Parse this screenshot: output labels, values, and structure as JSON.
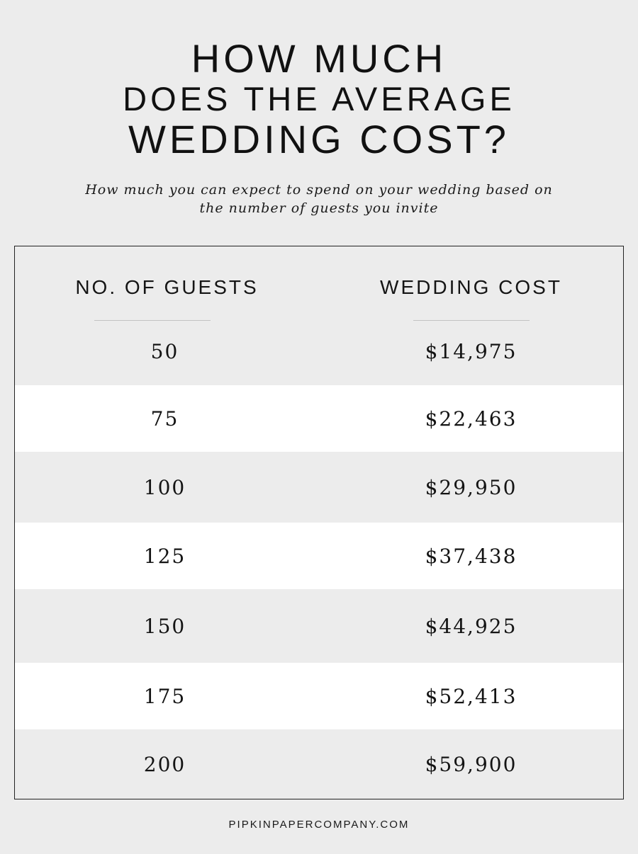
{
  "title": {
    "line1": "HOW MUCH",
    "line2": "DOES THE AVERAGE",
    "line3": "WEDDING COST?"
  },
  "subtitle": {
    "line1": "How much you can expect to spend on your wedding based on",
    "line2": "the number of guests you invite"
  },
  "table": {
    "header_guests": "NO. OF GUESTS",
    "header_cost": "WEDDING COST",
    "rows": [
      {
        "guests": "50",
        "cost": "$14,975"
      },
      {
        "guests": "75",
        "cost": "$22,463"
      },
      {
        "guests": "100",
        "cost": "$29,950"
      },
      {
        "guests": "125",
        "cost": "$37,438"
      },
      {
        "guests": "150",
        "cost": "$44,925"
      },
      {
        "guests": "175",
        "cost": "$52,413"
      },
      {
        "guests": "200",
        "cost": "$59,900"
      }
    ]
  },
  "colors": {
    "background": "#ececec",
    "row_alt": "#ffffff",
    "text": "#141414",
    "border": "#222222"
  },
  "footer": "PIPKINPAPERCOMPANY.COM",
  "chart_data": {
    "type": "table",
    "title": "HOW MUCH DOES THE AVERAGE WEDDING COST?",
    "subtitle": "How much you can expect to spend on your wedding based on the number of guests you invite",
    "columns": [
      "NO. OF GUESTS",
      "WEDDING COST"
    ],
    "rows": [
      [
        50,
        14975
      ],
      [
        75,
        22463
      ],
      [
        100,
        29950
      ],
      [
        125,
        37438
      ],
      [
        150,
        44925
      ],
      [
        175,
        52413
      ],
      [
        200,
        59900
      ]
    ]
  }
}
